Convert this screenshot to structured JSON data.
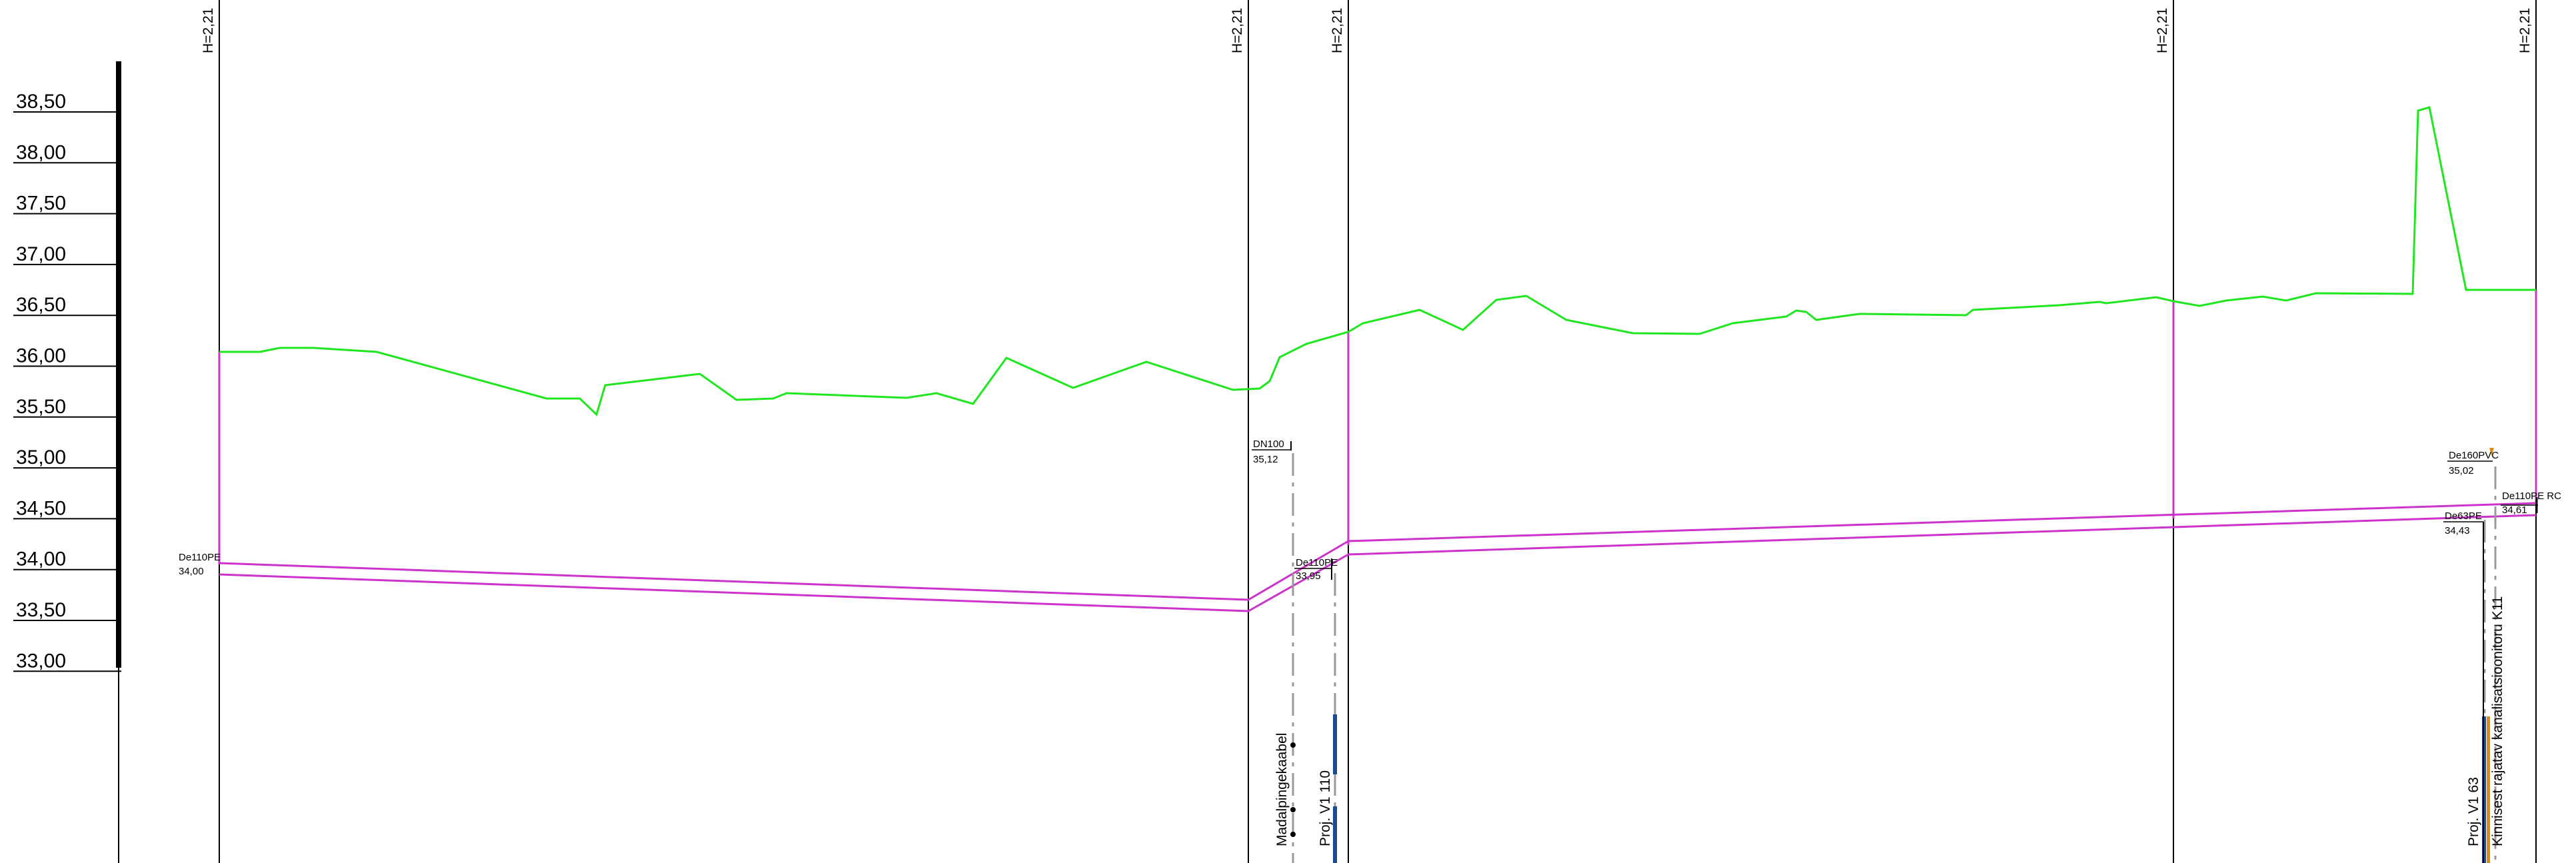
{
  "elevation_scale": {
    "labels": [
      "38,50",
      "38,00",
      "37,50",
      "37,00",
      "36,50",
      "36,00",
      "35,50",
      "35,00",
      "34,50",
      "34,00",
      "33,50",
      "33,00"
    ]
  },
  "stations": [
    "H=2,21",
    "H=2,21",
    "H=2,21",
    "H=2,21",
    "H=2,21"
  ],
  "pipe_labels": [
    {
      "name": "De110PE",
      "level": "34,00"
    },
    {
      "name": "DN100",
      "level": "35,12"
    },
    {
      "name": "De110PE",
      "level": "33,95"
    },
    {
      "name": "De160PVC",
      "level": "35,02"
    },
    {
      "name": "De63PE",
      "level": "34,43"
    },
    {
      "name": "De110PE RC",
      "level": "34,61"
    }
  ],
  "vertical_labels": [
    "Madalpingekaabel",
    "Proj. V1 110",
    "Proj. V1 63",
    "Kinnisest rajatav kanalisatsioonitoru K11"
  ],
  "colors": {
    "ground": "#1fe61f",
    "pipe": "#cc33cc",
    "grid": "#000000",
    "cable": "#999999",
    "blue_marker": "#1a4a9a",
    "orange_marker": "#d98a1a"
  }
}
